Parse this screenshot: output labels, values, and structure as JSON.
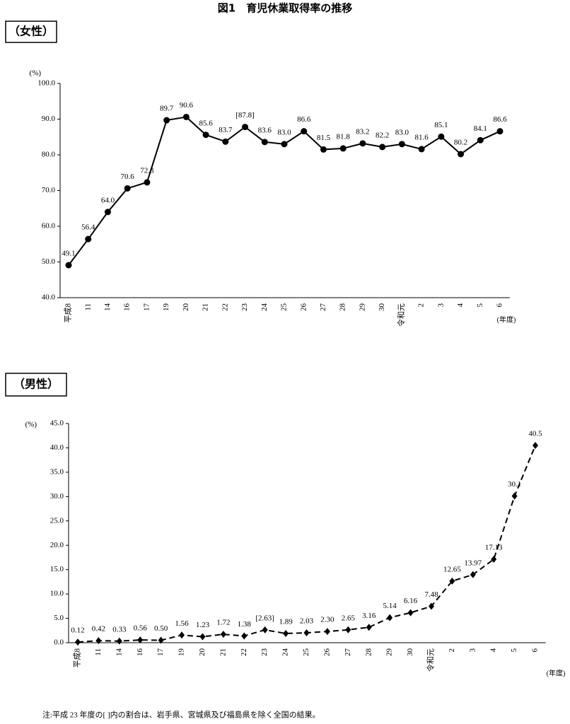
{
  "title": "図1　育児休業取得率の推移",
  "note": "注:平成 23 年度の[ ]内の割合は、岩手県、宮城県及び福島県を除く全国の結果。",
  "chart_data": [
    {
      "type": "line",
      "title": "（女性）",
      "y_label": "(%)",
      "x_label": "(年度)",
      "categories": [
        "平成8",
        "11",
        "14",
        "16",
        "17",
        "19",
        "20",
        "21",
        "22",
        "23",
        "24",
        "25",
        "26",
        "27",
        "28",
        "29",
        "30",
        "令和元",
        "2",
        "3",
        "4",
        "5",
        "6"
      ],
      "values": [
        49.1,
        56.4,
        64.0,
        70.6,
        72.3,
        89.7,
        90.6,
        85.6,
        83.7,
        87.8,
        83.6,
        83.0,
        86.6,
        81.5,
        81.8,
        83.2,
        82.2,
        83.0,
        81.6,
        85.1,
        80.2,
        84.1,
        86.6
      ],
      "value_labels": [
        "49.1",
        "56.4",
        "64.0",
        "70.6",
        "72.3",
        "89.7",
        "90.6",
        "85.6",
        "83.7",
        "[87.8]",
        "83.6",
        "83.0",
        "86.6",
        "81.5",
        "81.8",
        "83.2",
        "82.2",
        "83.0",
        "81.6",
        "85.1",
        "80.2",
        "84.1",
        "86.6"
      ],
      "color": "#000000",
      "marker": "circle",
      "line_style": "solid",
      "ylim": [
        40,
        100
      ],
      "yticks": [
        {
          "value": 40,
          "label": "40.0"
        },
        {
          "value": 50,
          "label": "50.0"
        },
        {
          "value": 60,
          "label": "60.0"
        },
        {
          "value": 70,
          "label": "70.0"
        },
        {
          "value": 80,
          "label": "80.0"
        },
        {
          "value": 90,
          "label": "90.0"
        },
        {
          "value": 100,
          "label": "100.0"
        }
      ]
    },
    {
      "type": "line",
      "title": "（男性）",
      "y_label": "(%)",
      "x_label": "(年度)",
      "categories": [
        "平成8",
        "11",
        "14",
        "16",
        "17",
        "19",
        "20",
        "21",
        "22",
        "23",
        "24",
        "25",
        "26",
        "27",
        "28",
        "29",
        "30",
        "令和元",
        "2",
        "3",
        "4",
        "5",
        "6"
      ],
      "values": [
        0.12,
        0.42,
        0.33,
        0.56,
        0.5,
        1.56,
        1.23,
        1.72,
        1.38,
        2.63,
        1.89,
        2.03,
        2.3,
        2.65,
        3.16,
        5.14,
        6.16,
        7.48,
        12.65,
        13.97,
        17.13,
        30.1,
        40.5
      ],
      "value_labels": [
        "0.12",
        "0.42",
        "0.33",
        "0.56",
        "0.50",
        "1.56",
        "1.23",
        "1.72",
        "1.38",
        "[2.63]",
        "1.89",
        "2.03",
        "2.30",
        "2.65",
        "3.16",
        "5.14",
        "6.16",
        "7.48",
        "12.65",
        "13.97",
        "17.13",
        "30.1",
        "40.5"
      ],
      "color": "#000000",
      "marker": "diamond",
      "line_style": "dashed",
      "ylim": [
        0,
        45
      ],
      "yticks": [
        {
          "value": 0,
          "label": "0.0"
        },
        {
          "value": 5,
          "label": "5.0"
        },
        {
          "value": 10,
          "label": "10.0"
        },
        {
          "value": 15,
          "label": "15.0"
        },
        {
          "value": 20,
          "label": "20.0"
        },
        {
          "value": 25,
          "label": "25.0"
        },
        {
          "value": 30,
          "label": "30.0"
        },
        {
          "value": 35,
          "label": "35.0"
        },
        {
          "value": 40,
          "label": "40.0"
        },
        {
          "value": 45,
          "label": "45.0"
        }
      ]
    }
  ]
}
